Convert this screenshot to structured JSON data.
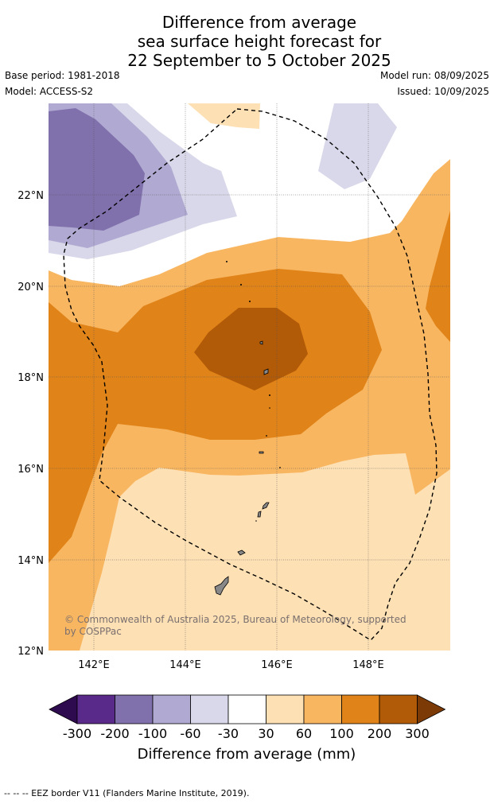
{
  "header": {
    "title_line1": "Difference from average",
    "title_line2": "sea surface height forecast for",
    "title_line3": "22 September to 5 October 2025",
    "base_period": "Base period: 1981-2018",
    "model": "Model: ACCESS-S2",
    "model_run": "Model run: 08/09/2025",
    "issued": "Issued: 10/09/2025"
  },
  "map": {
    "lat_labels": [
      "22°N",
      "20°N",
      "18°N",
      "16°N",
      "14°N",
      "12°N"
    ],
    "lon_labels": [
      "142°E",
      "144°E",
      "146°E",
      "148°E"
    ],
    "extent": {
      "lon": [
        141,
        149.8
      ],
      "lat": [
        12,
        24
      ]
    },
    "copyright": "© Commonwealth of Australia 2025, Bureau of Meteorology, supported by COSPPac",
    "eez_line": "dashed",
    "contour_colors": {
      "-300_-200": "#5a2a8a",
      "-200_-100": "#8070ac",
      "-100_-60": "#b0aad2",
      "-60_-30": "#d8d8ea",
      "-30_30": "#ffffff",
      "30_60": "#fde0b4",
      "60_100": "#f9b661",
      "100_200": "#e08318",
      "200_300": "#b15a08"
    }
  },
  "colorbar": {
    "labels": [
      "-300",
      "-200",
      "-100",
      "-60",
      "-30",
      "30",
      "60",
      "100",
      "200",
      "300"
    ],
    "colors": [
      "#2e0a4f",
      "#5a2a8a",
      "#8070ac",
      "#b0aad2",
      "#d8d8ea",
      "#ffffff",
      "#fde0b4",
      "#f9b661",
      "#e08318",
      "#b15a08",
      "#7c3b06"
    ],
    "title": "Difference from average (mm)"
  },
  "footnote": "-- -- -- EEZ border V11 (Flanders Marine Institute, 2019)."
}
